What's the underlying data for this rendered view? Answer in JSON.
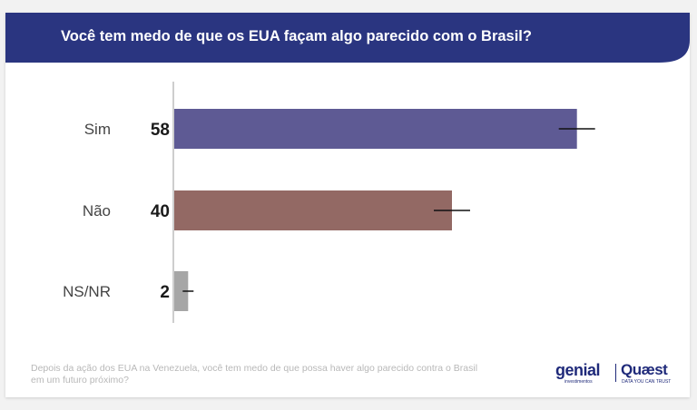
{
  "header": {
    "title": "Você tem medo de que os EUA façam algo parecido com o Brasil?"
  },
  "footer": {
    "question": "Depois da ação dos EUA na Venezuela, você tem medo de que possa haver algo parecido contra o Brasil em um futuro próximo?",
    "logo_genial": "genial",
    "logo_genial_sub": "investimentos",
    "logo_quaest": "Quæst",
    "logo_quaest_sub": "DATA YOU CAN TRUST"
  },
  "colors": {
    "header_bg": "#2a3580",
    "sim": "#5e5a94",
    "nao": "#936964",
    "nsnr": "#a6a6a6"
  },
  "chart_data": {
    "type": "bar",
    "orientation": "horizontal",
    "categories": [
      "Sim",
      "Não",
      "NS/NR"
    ],
    "values": [
      58,
      40,
      2
    ],
    "value_labels": [
      "58",
      "40",
      "2"
    ],
    "error_bars": true,
    "xlim": [
      0,
      62
    ],
    "grid": false
  }
}
